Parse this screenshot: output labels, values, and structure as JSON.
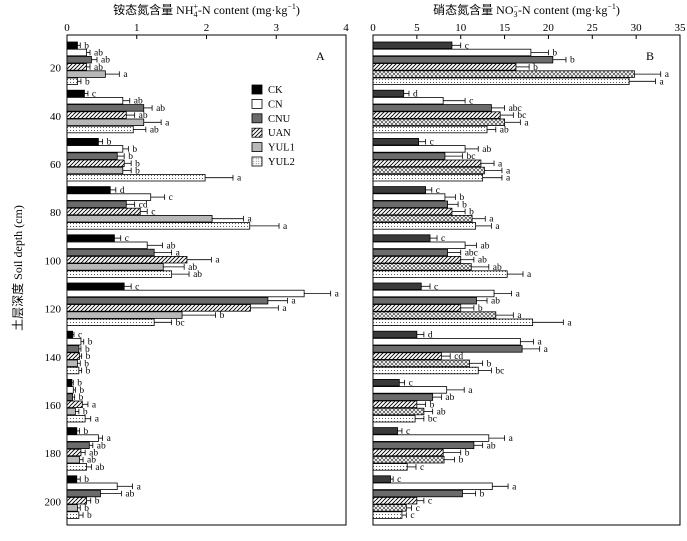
{
  "figure": {
    "ylabel": "土层深度 Soil depth (cm)",
    "depth_ticks": [
      "20",
      "40",
      "60",
      "80",
      "100",
      "120",
      "140",
      "160",
      "180",
      "200"
    ],
    "legend": [
      "CK",
      "CN",
      "CNU",
      "UAN",
      "YUL1",
      "YUL2"
    ]
  },
  "chart_data": [
    {
      "type": "bar",
      "orientation": "horizontal",
      "panel": "A",
      "title": "铵态氮含量 NH4+-N content (mg·kg−1)",
      "title_parts": {
        "pre": "铵态氮含量 NH",
        "sub": "4",
        "sup": "+",
        "post": "-N content (mg·kg",
        "sup2": "−1",
        "close": ")"
      },
      "xlim": [
        0,
        4
      ],
      "xticks": [
        "0",
        "1",
        "2",
        "3",
        "4"
      ],
      "categories": [
        "20",
        "40",
        "60",
        "80",
        "100",
        "120",
        "140",
        "160",
        "180",
        "200"
      ],
      "series": [
        {
          "name": "CK",
          "values": [
            0.15,
            0.25,
            0.45,
            0.62,
            0.68,
            0.82,
            0.08,
            0.07,
            0.14,
            0.14
          ],
          "errors": [
            0.04,
            0.05,
            0.06,
            0.08,
            0.09,
            0.1,
            0.02,
            0.02,
            0.04,
            0.05
          ],
          "labels": [
            "b",
            "c",
            "b",
            "d",
            "c",
            "c",
            "c",
            "b",
            "b",
            "b"
          ]
        },
        {
          "name": "CN",
          "values": [
            0.28,
            0.8,
            0.8,
            1.2,
            1.15,
            3.4,
            0.2,
            0.09,
            0.45,
            0.72
          ],
          "errors": [
            0.05,
            0.1,
            0.08,
            0.2,
            0.22,
            0.38,
            0.04,
            0.03,
            0.06,
            0.22
          ],
          "labels": [
            "ab",
            "ab",
            "b",
            "c",
            "ab",
            "a",
            "b",
            "b",
            "a",
            "a"
          ]
        },
        {
          "name": "CNU",
          "values": [
            0.35,
            1.1,
            0.72,
            0.85,
            1.25,
            2.88,
            0.17,
            0.08,
            0.32,
            0.48
          ],
          "errors": [
            0.08,
            0.12,
            0.1,
            0.12,
            0.25,
            0.28,
            0.03,
            0.03,
            0.05,
            0.3
          ],
          "labels": [
            "ab",
            "ab",
            "b",
            "cd",
            "a",
            "a",
            "b",
            "b",
            "ab",
            "ab"
          ]
        },
        {
          "name": "UAN",
          "values": [
            0.28,
            0.85,
            0.82,
            1.05,
            1.72,
            2.63,
            0.18,
            0.22,
            0.2,
            0.28
          ],
          "errors": [
            0.05,
            0.12,
            0.1,
            0.1,
            0.35,
            0.4,
            0.03,
            0.08,
            0.06,
            0.06
          ],
          "labels": [
            "ab",
            "ab",
            "b",
            "c",
            "a",
            "a",
            "b",
            "a",
            "ab",
            "b"
          ]
        },
        {
          "name": "YUL1",
          "values": [
            0.55,
            1.1,
            0.8,
            2.08,
            1.38,
            1.65,
            0.15,
            0.12,
            0.18,
            0.15
          ],
          "errors": [
            0.2,
            0.25,
            0.12,
            0.45,
            0.3,
            0.48,
            0.04,
            0.05,
            0.05,
            0.04
          ],
          "labels": [
            "a",
            "a",
            "b",
            "a",
            "ab",
            "b",
            "b",
            "b",
            "ab",
            "b"
          ]
        },
        {
          "name": "YUL2",
          "values": [
            0.15,
            0.95,
            1.98,
            2.62,
            1.5,
            1.25,
            0.17,
            0.26,
            0.28,
            0.17
          ],
          "errors": [
            0.05,
            0.18,
            0.4,
            0.42,
            0.25,
            0.25,
            0.04,
            0.08,
            0.07,
            0.06
          ],
          "labels": [
            "b",
            "ab",
            "a",
            "a",
            "ab",
            "bc",
            "b",
            "a",
            "ab",
            "b"
          ]
        }
      ]
    },
    {
      "type": "bar",
      "orientation": "horizontal",
      "panel": "B",
      "title": "硝态氮含量 NO3−-N content (mg·kg−1)",
      "title_parts": {
        "pre": "硝态氮含量 NO",
        "sub": "3",
        "sup": "−",
        "post": "-N content (mg·kg",
        "sup2": "−1",
        "close": ")"
      },
      "xlim": [
        0,
        35
      ],
      "xticks": [
        "0",
        "5",
        "10",
        "15",
        "20",
        "25",
        "30",
        "35"
      ],
      "categories": [
        "20",
        "40",
        "60",
        "80",
        "100",
        "120",
        "140",
        "160",
        "180",
        "200"
      ],
      "series": [
        {
          "name": "CK",
          "values": [
            9.0,
            3.5,
            5.2,
            6.0,
            6.5,
            5.5,
            5.0,
            3.0,
            2.8,
            2.0
          ],
          "errors": [
            1.0,
            0.6,
            0.8,
            0.7,
            0.8,
            1.0,
            0.8,
            0.6,
            0.5,
            0.3
          ],
          "labels": [
            "c",
            "d",
            "c",
            "c",
            "c",
            "c",
            "d",
            "c",
            "c",
            "c"
          ]
        },
        {
          "name": "CN",
          "values": [
            18.0,
            8.0,
            10.5,
            8.2,
            10.5,
            13.8,
            16.8,
            8.4,
            13.2,
            13.6
          ],
          "errors": [
            2.0,
            2.5,
            1.5,
            1.2,
            1.3,
            2.0,
            1.5,
            2.0,
            1.8,
            1.8
          ],
          "labels": [
            "b",
            "c",
            "ab",
            "b",
            "ab",
            "a",
            "a",
            "a",
            "a",
            "a"
          ]
        },
        {
          "name": "CNU",
          "values": [
            20.5,
            13.5,
            8.2,
            8.5,
            8.5,
            11.8,
            17.0,
            6.8,
            11.5,
            10.2
          ],
          "errors": [
            1.5,
            1.5,
            2.0,
            1.2,
            1.5,
            1.2,
            2.0,
            1.0,
            1.0,
            1.5
          ],
          "labels": [
            "b",
            "abc",
            "bc",
            "b",
            "abc",
            "ab",
            "a",
            "ab",
            "ab",
            "b"
          ]
        },
        {
          "name": "UAN",
          "values": [
            16.3,
            14.5,
            12.3,
            9.0,
            10.0,
            10.0,
            7.8,
            5.0,
            8.0,
            5.0
          ],
          "errors": [
            1.5,
            1.5,
            1.5,
            1.5,
            1.5,
            1.5,
            1.0,
            1.0,
            2.0,
            0.8
          ],
          "labels": [
            "b",
            "bc",
            "a",
            "b",
            "ab",
            "b",
            "cd",
            "b",
            "b",
            "c"
          ]
        },
        {
          "name": "YUL1",
          "values": [
            29.8,
            15.0,
            12.7,
            11.3,
            11.2,
            14.0,
            11.0,
            5.8,
            8.1,
            3.8
          ],
          "errors": [
            3.0,
            1.8,
            2.0,
            1.5,
            2.0,
            2.0,
            1.5,
            1.0,
            1.2,
            0.6
          ],
          "labels": [
            "a",
            "a",
            "a",
            "a",
            "ab",
            "a",
            "b",
            "ab",
            "b",
            "c"
          ]
        },
        {
          "name": "YUL2",
          "values": [
            29.2,
            13.0,
            12.5,
            11.7,
            15.3,
            18.2,
            12.0,
            4.8,
            3.9,
            3.3
          ],
          "errors": [
            3.0,
            1.0,
            2.2,
            1.8,
            1.8,
            3.5,
            1.5,
            1.0,
            1.0,
            0.5
          ],
          "labels": [
            "a",
            "ab",
            "a",
            "a",
            "a",
            "a",
            "bc",
            "bc",
            "c",
            "c"
          ]
        }
      ]
    }
  ],
  "colors": {
    "CK": "#000000",
    "CN": "#ffffff",
    "CNU": "#6b6b6b",
    "UAN": "hatch",
    "YUL1": "#b8b8b8",
    "YUL2": "dots",
    "panelB_CK": "#3a3a3a",
    "panelB_YUL1": "crosshatch"
  }
}
